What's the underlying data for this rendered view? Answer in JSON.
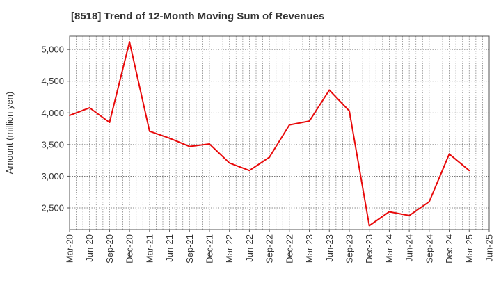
{
  "chart_data": {
    "type": "line",
    "title": "[8518]  Trend of 12-Month Moving Sum of Revenues",
    "xlabel": "",
    "ylabel": "Amount (million yen)",
    "x_ticks": [
      "Mar-20",
      "Jun-20",
      "Sep-20",
      "Dec-20",
      "Mar-21",
      "Jun-21",
      "Sep-21",
      "Dec-21",
      "Mar-22",
      "Jun-22",
      "Sep-22",
      "Dec-22",
      "Mar-23",
      "Jun-23",
      "Sep-23",
      "Dec-23",
      "Mar-24",
      "Jun-24",
      "Sep-24",
      "Dec-24",
      "Mar-25",
      "Jun-25"
    ],
    "y_ticks": [
      2500,
      3000,
      3500,
      4000,
      4500,
      5000
    ],
    "y_tick_labels": [
      "2,500",
      "3,000",
      "3,500",
      "4,000",
      "4,500",
      "5,000"
    ],
    "ylim": [
      2160,
      5210
    ],
    "grid": true,
    "series": [
      {
        "color": "#e8090a",
        "x": [
          "Mar-20",
          "Jun-20",
          "Sep-20",
          "Dec-20",
          "Mar-21",
          "Jun-21",
          "Sep-21",
          "Dec-21",
          "Mar-22",
          "Jun-22",
          "Sep-22",
          "Dec-22",
          "Mar-23",
          "Jun-23",
          "Sep-23",
          "Dec-23",
          "Mar-24",
          "Jun-24",
          "Sep-24",
          "Dec-24",
          "Mar-25"
        ],
        "values": [
          3960,
          4080,
          3850,
          5120,
          3710,
          3600,
          3470,
          3510,
          3210,
          3090,
          3300,
          3810,
          3870,
          4360,
          4030,
          2220,
          2440,
          2380,
          2600,
          3350,
          3090
        ]
      }
    ]
  }
}
